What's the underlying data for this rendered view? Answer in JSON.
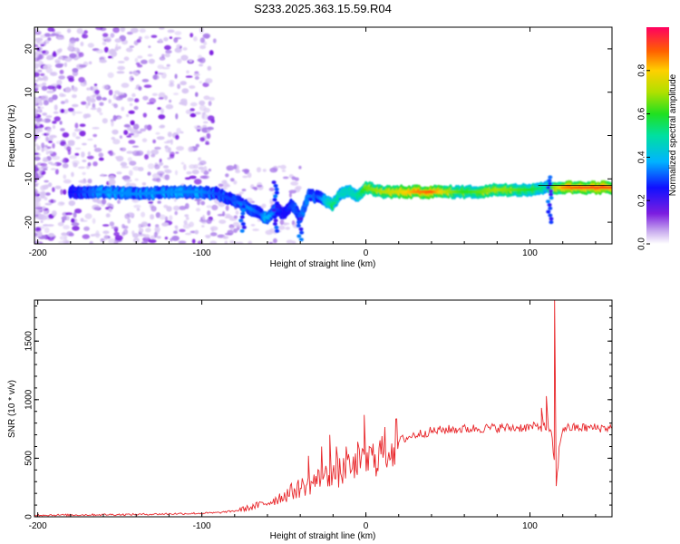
{
  "title": "S233.2025.363.15.59.R04",
  "chart_data": [
    {
      "type": "heatmap",
      "name": "spectrogram",
      "xlabel": "Height of straight line (km)",
      "ylabel": "Frequency (Hz)",
      "xlim": [
        -202,
        150
      ],
      "ylim": [
        -25,
        25
      ],
      "xticks": [
        -200,
        -100,
        0,
        100
      ],
      "yticks": [
        -20,
        -10,
        0,
        10,
        20
      ],
      "colorbar": {
        "label": "Normalized spectral amplitude",
        "range": [
          0,
          1
        ],
        "ticks": [
          0.0,
          0.2,
          0.4,
          0.6,
          0.8
        ]
      },
      "ridge": {
        "x": [
          -180,
          -160,
          -140,
          -120,
          -100,
          -90,
          -80,
          -75,
          -70,
          -65,
          -60,
          -55,
          -50,
          -45,
          -40,
          -35,
          -30,
          -25,
          -20,
          -15,
          -10,
          -5,
          0,
          10,
          20,
          30,
          40,
          50,
          60,
          70,
          80,
          90,
          100,
          110,
          120,
          130,
          150
        ],
        "freq": [
          -13,
          -13,
          -13.5,
          -13,
          -13,
          -13.5,
          -15,
          -16,
          -17,
          -18,
          -19,
          -17,
          -18,
          -16,
          -19,
          -14,
          -14,
          -15,
          -16,
          -13,
          -13,
          -14,
          -12,
          -13,
          -13,
          -13,
          -13,
          -13,
          -13,
          -13,
          -12.5,
          -12.5,
          -12.5,
          -12,
          -12,
          -12,
          -12
        ],
        "amplitude": [
          0.25,
          0.35,
          0.35,
          0.35,
          0.35,
          0.3,
          0.3,
          0.35,
          0.35,
          0.3,
          0.4,
          0.3,
          0.25,
          0.3,
          0.3,
          0.35,
          0.3,
          0.4,
          0.55,
          0.45,
          0.45,
          0.5,
          0.65,
          0.7,
          0.75,
          0.85,
          0.9,
          0.7,
          0.6,
          0.65,
          0.7,
          0.65,
          0.6,
          0.5,
          0.85,
          0.9,
          0.9
        ]
      }
    },
    {
      "type": "line",
      "name": "snr",
      "xlabel": "Height of straight line (km)",
      "ylabel": "SNR (10 * v/v)",
      "xlim": [
        -202,
        150
      ],
      "ylim": [
        0,
        1850
      ],
      "xticks": [
        -200,
        -100,
        0,
        100
      ],
      "yticks": [
        0,
        500,
        1000,
        1500
      ],
      "line_color": "#e8262a",
      "series": [
        {
          "name": "SNR",
          "x": [
            -202,
            -180,
            -160,
            -140,
            -120,
            -100,
            -90,
            -80,
            -70,
            -60,
            -50,
            -40,
            -30,
            -20,
            -10,
            0,
            10,
            20,
            30,
            40,
            50,
            60,
            70,
            80,
            90,
            100,
            105,
            110,
            113,
            115,
            116,
            118,
            120,
            130,
            140,
            150
          ],
          "y": [
            15,
            15,
            18,
            20,
            25,
            30,
            35,
            50,
            80,
            120,
            180,
            250,
            310,
            360,
            400,
            450,
            560,
            650,
            700,
            730,
            745,
            750,
            755,
            760,
            760,
            765,
            770,
            760,
            700,
            480,
            250,
            600,
            760,
            760,
            760,
            760
          ]
        }
      ],
      "spikes": [
        {
          "x": -90,
          "y": 40
        },
        {
          "x": -35,
          "y": 520
        },
        {
          "x": -27,
          "y": 600
        },
        {
          "x": -22,
          "y": 700
        },
        {
          "x": -18,
          "y": 600
        },
        {
          "x": -12,
          "y": 600
        },
        {
          "x": -5,
          "y": 640
        },
        {
          "x": -1,
          "y": 870
        },
        {
          "x": 2,
          "y": 600
        },
        {
          "x": 107,
          "y": 930
        },
        {
          "x": 110,
          "y": 1030
        },
        {
          "x": 115,
          "y": 1850
        }
      ]
    }
  ]
}
